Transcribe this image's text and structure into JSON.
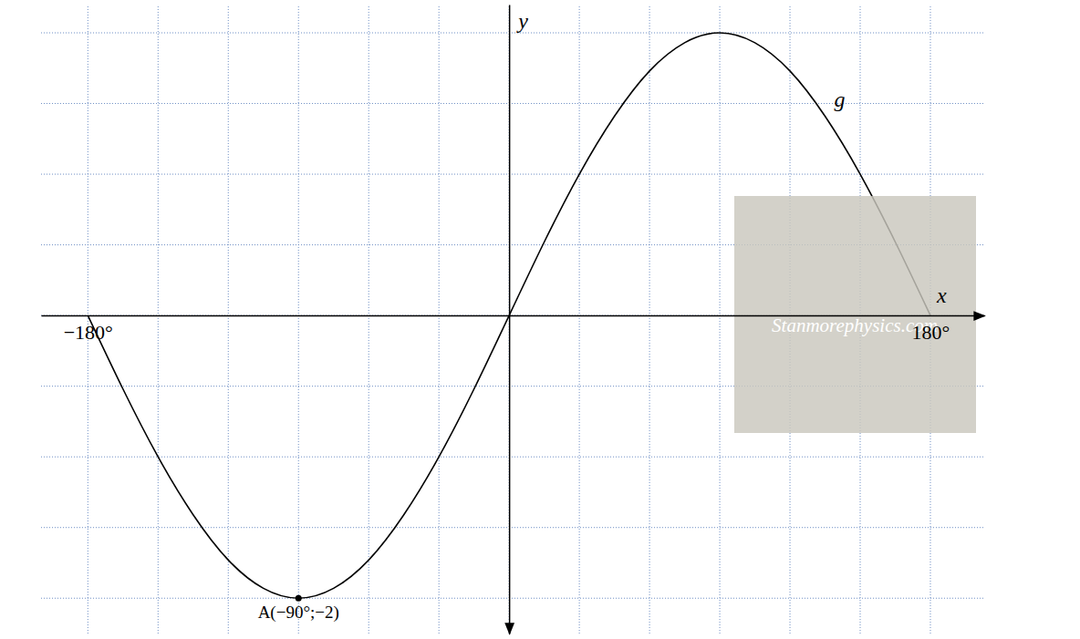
{
  "chart_data": {
    "type": "line",
    "x": [
      -180,
      -165,
      -150,
      -135,
      -120,
      -105,
      -90,
      -75,
      -60,
      -45,
      -30,
      -15,
      0,
      15,
      30,
      45,
      60,
      75,
      90,
      105,
      120,
      135,
      150,
      165,
      180
    ],
    "series": [
      {
        "name": "g",
        "color": "#000000",
        "values": [
          0,
          -0.52,
          -1,
          -1.41,
          -1.73,
          -1.93,
          -2,
          -1.93,
          -1.73,
          -1.41,
          -1,
          -0.52,
          0,
          0.52,
          1,
          1.41,
          1.73,
          1.93,
          2,
          1.93,
          1.73,
          1.41,
          1,
          0.52,
          0
        ]
      }
    ],
    "xlim": [
      -200,
      203
    ],
    "ylim": [
      -2.25,
      2.2
    ],
    "xticks": [
      {
        "value": -180,
        "label": "−180°"
      },
      {
        "value": 180,
        "label": "180°"
      }
    ],
    "yticks": [
      -2,
      -1.5,
      -1,
      -0.5,
      0,
      0.5,
      1,
      1.5,
      2
    ],
    "x_grid": [
      -180,
      -150,
      -120,
      -90,
      -60,
      -30,
      0,
      30,
      60,
      90,
      120,
      150,
      180
    ],
    "x_label": "x",
    "y_label": "y",
    "tick_labels": "x",
    "grid": true,
    "annotations": [
      {
        "text": "A(−90°;−2)",
        "x": -90,
        "y": -2
      }
    ],
    "watermark": "Stanmorephysics.com"
  }
}
